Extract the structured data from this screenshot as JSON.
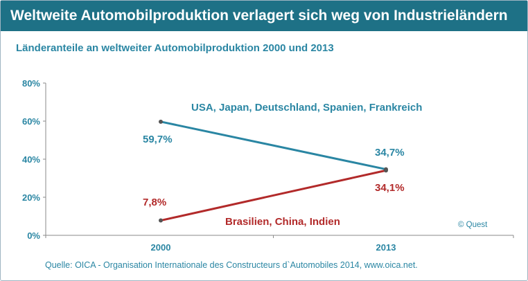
{
  "header": {
    "title": "Weltweite Automobilproduktion verlagert sich weg von Industrieländern"
  },
  "colors": {
    "header_bg": "#1e7186",
    "accent_blue": "#2a86a3",
    "line_industrial": "#2a86a3",
    "line_emerging": "#b22a2a",
    "axis": "#8a8a8a"
  },
  "chart_data": {
    "type": "line",
    "title": "Länderanteile an weltweiter Automobilproduktion 2000 und 2013",
    "categories": [
      "2000",
      "2013"
    ],
    "ylim": [
      0,
      80
    ],
    "yticks": [
      "0%",
      "20%",
      "40%",
      "60%",
      "80%"
    ],
    "grid": false,
    "series": [
      {
        "name": "USA, Japan, Deutschland, Spanien, Frankreich",
        "values": [
          59.7,
          34.7
        ],
        "labels": [
          "59,7%",
          "34,7%"
        ],
        "color": "#2a86a3"
      },
      {
        "name": "Brasilien, China, Indien",
        "values": [
          7.8,
          34.1
        ],
        "labels": [
          "7,8%",
          "34,1%"
        ],
        "color": "#b22a2a"
      }
    ]
  },
  "footer": {
    "source": "Quelle: OICA - Organisation Internationale des Constructeurs d`Automobiles 2014, www.oica.net.",
    "copyright": "© Quest"
  }
}
